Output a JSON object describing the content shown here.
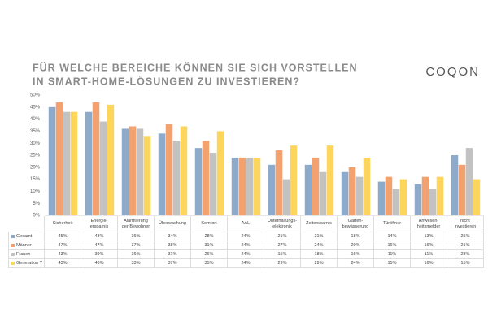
{
  "chart_data": {
    "type": "bar",
    "title": "FÜR WELCHE BEREICHE KÖNNEN SIE SICH VORSTELLEN",
    "subtitle": "IN SMART-HOME-LÖSUNGEN ZU INVESTIEREN?",
    "logo": "COQON",
    "categories": [
      "Sicherheit",
      "Energie-\nersparnis",
      "Alarmierung\nder Bewohner",
      "Überwachung",
      "Komfort",
      "AAL",
      "Unterhaltungs-\nelektronik",
      "Zeitersparnis",
      "Garten-\nbewässerung",
      "Türöffner",
      "Anwesen-\nheitsmelder",
      "nicht\ninvestieren"
    ],
    "series": [
      {
        "name": "Gesamt",
        "color": "#8eaacb",
        "values": [
          45,
          43,
          36,
          34,
          28,
          24,
          21,
          21,
          18,
          14,
          13,
          25
        ],
        "value_labels": [
          "45%",
          "43%",
          "36%",
          "34%",
          "28%",
          "24%",
          "21%",
          "21%",
          "18%",
          "14%",
          "13%",
          "25%"
        ]
      },
      {
        "name": "Männer",
        "color": "#f2a16f",
        "values": [
          47,
          47,
          37,
          38,
          31,
          24,
          27,
          24,
          20,
          16,
          16,
          21
        ],
        "value_labels": [
          "47%",
          "47%",
          "37%",
          "38%",
          "31%",
          "24%",
          "27%",
          "24%",
          "20%",
          "16%",
          "16%",
          "21%"
        ]
      },
      {
        "name": "Frauen",
        "color": "#c2c2c2",
        "values": [
          43,
          39,
          36,
          31,
          26,
          24,
          15,
          18,
          16,
          11,
          11,
          28
        ],
        "value_labels": [
          "43%",
          "39%",
          "36%",
          "31%",
          "26%",
          "24%",
          "15%",
          "18%",
          "16%",
          "11%",
          "11%",
          "28%"
        ]
      },
      {
        "name": "Generation Y",
        "color": "#fcd55c",
        "values": [
          43,
          46,
          33,
          37,
          35,
          24,
          29,
          29,
          24,
          15,
          16,
          15
        ],
        "value_labels": [
          "43%",
          "46%",
          "33%",
          "37%",
          "35%",
          "24%",
          "29%",
          "29%",
          "24%",
          "15%",
          "16%",
          "15%"
        ]
      }
    ],
    "ylim": [
      0,
      50
    ],
    "yticks": [
      {
        "value": 0,
        "label": "0%"
      },
      {
        "value": 5,
        "label": "5%"
      },
      {
        "value": 10,
        "label": "10%"
      },
      {
        "value": 15,
        "label": "15%"
      },
      {
        "value": 20,
        "label": "20%"
      },
      {
        "value": 25,
        "label": "25%"
      },
      {
        "value": 30,
        "label": "30%"
      },
      {
        "value": 35,
        "label": "35%"
      },
      {
        "value": 40,
        "label": "40%"
      },
      {
        "value": 45,
        "label": "45%"
      },
      {
        "value": 50,
        "label": "50%"
      }
    ],
    "grid": false
  }
}
